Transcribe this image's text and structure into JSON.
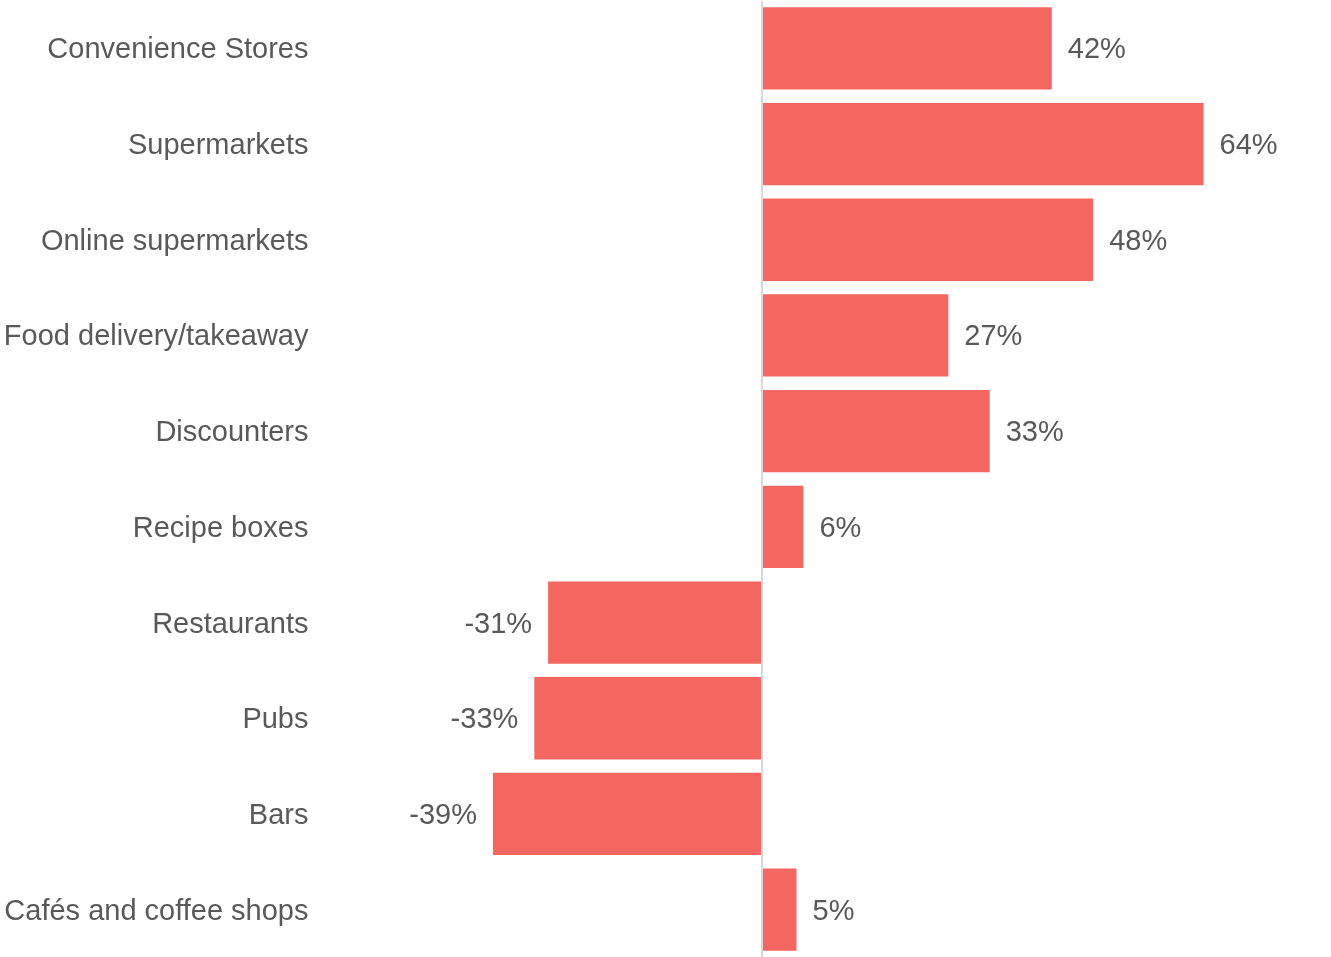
{
  "chart_data": {
    "type": "bar",
    "orientation": "horizontal",
    "categories": [
      "Convenience Stores",
      "Supermarkets",
      "Online supermarkets",
      "Food delivery/takeaway",
      "Discounters",
      "Recipe boxes",
      "Restaurants",
      "Pubs",
      "Bars",
      "Cafés and coffee shops"
    ],
    "values": [
      42,
      64,
      48,
      27,
      33,
      6,
      -31,
      -33,
      -39,
      5
    ],
    "value_labels": [
      "42%",
      "64%",
      "48%",
      "27%",
      "33%",
      "6%",
      "-31%",
      "-33%",
      "-39%",
      "5%"
    ],
    "color": "#f4665f",
    "grid": false,
    "tick_labels": "y"
  }
}
